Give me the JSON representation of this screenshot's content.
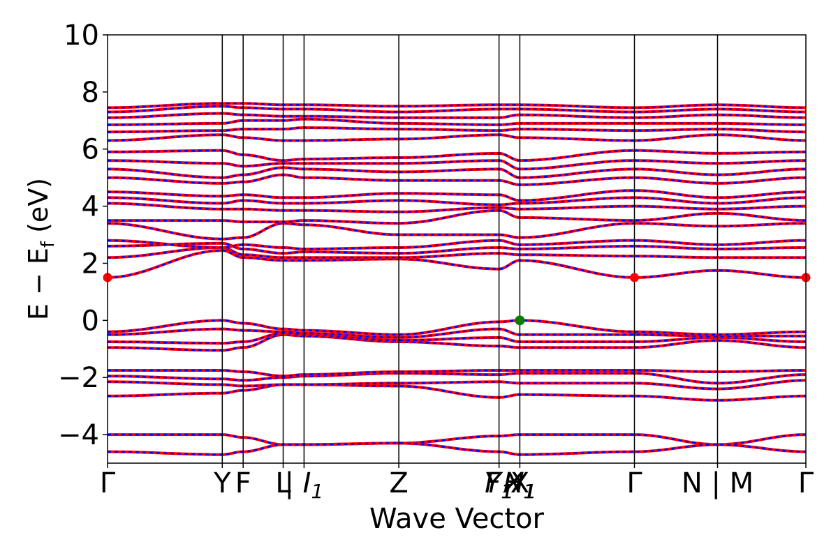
{
  "chart_data": {
    "type": "line",
    "ylabel": "E − E",
    "ylabel_sub": "f",
    "ylabel_unit": " (eV)",
    "xlabel": "Wave Vector",
    "ylim": [
      -5,
      10
    ],
    "yticks": [
      "−4",
      "−2",
      "0",
      "2",
      "4",
      "6",
      "8",
      "10"
    ],
    "ytick_values": [
      -4,
      -2,
      0,
      2,
      4,
      6,
      8,
      10
    ],
    "kpoint_positions": [
      0,
      0.1643,
      0.1942,
      0.2515,
      0.2814,
      0.4171,
      0.5606,
      0.5904,
      0.7545,
      0.8735,
      1.0
    ],
    "kpoint_labels": [
      {
        "text": "Γ",
        "k": 0.0
      },
      {
        "text": "Y",
        "k": 0.1643
      },
      {
        "text": "F",
        "k": 0.1942
      },
      {
        "text": "L",
        "k": 0.2515
      },
      {
        "text": "| I",
        "sub": "1",
        "k": 0.2814
      },
      {
        "text": "Z",
        "k": 0.4171
      },
      {
        "text": "F",
        "sub": "1",
        "k": 0.5606
      },
      {
        "text": "Y",
        "sub": "1",
        "k": 0.5606
      },
      {
        "text": "H",
        "sub": "1",
        "k": 0.5904
      },
      {
        "text": "X",
        "sub": "1",
        "k": 0.5904
      },
      {
        "text": "X",
        "k": 0.5904
      },
      {
        "text": "Γ",
        "k": 0.7545
      },
      {
        "text": "N | M",
        "k": 0.8735
      },
      {
        "text": "Γ",
        "k": 1.0
      }
    ],
    "series_colors": {
      "spin_up": "#ff0000",
      "spin_down": "#0000ff"
    },
    "cbm_color": "#ff0000",
    "vbm_color": "#008000",
    "cbm_points": [
      {
        "k": 0.0,
        "e": 1.5
      },
      {
        "k": 0.7545,
        "e": 1.5
      },
      {
        "k": 1.0,
        "e": 1.5
      }
    ],
    "vbm_points": [
      {
        "k": 0.5904,
        "e": 0.0
      }
    ],
    "bands": [
      {
        "name": "b1",
        "energies": [
          -4.0,
          -4.0,
          -4.1,
          -4.35,
          -4.35,
          -4.3,
          -4.05,
          -4.0,
          -4.0,
          -4.35,
          -4.0
        ]
      },
      {
        "name": "b2",
        "energies": [
          -4.6,
          -4.7,
          -4.6,
          -4.35,
          -4.35,
          -4.3,
          -4.6,
          -4.7,
          -4.6,
          -4.35,
          -4.6
        ]
      },
      {
        "name": "b3",
        "energies": [
          -2.65,
          -2.55,
          -2.45,
          -2.25,
          -2.25,
          -2.3,
          -2.7,
          -2.6,
          -2.65,
          -2.8,
          -2.65
        ]
      },
      {
        "name": "b4",
        "energies": [
          -2.15,
          -2.25,
          -2.3,
          -2.25,
          -2.25,
          -2.2,
          -2.15,
          -2.2,
          -2.2,
          -2.4,
          -2.1
        ]
      },
      {
        "name": "b5",
        "energies": [
          -1.95,
          -2.05,
          -2.1,
          -2.0,
          -1.95,
          -1.85,
          -1.9,
          -1.85,
          -1.85,
          -2.2,
          -1.9
        ]
      },
      {
        "name": "b6",
        "energies": [
          -1.75,
          -1.75,
          -1.8,
          -1.95,
          -1.9,
          -1.8,
          -1.75,
          -1.75,
          -1.75,
          -1.8,
          -1.75
        ]
      },
      {
        "name": "b7",
        "energies": [
          -0.95,
          -1.05,
          -0.95,
          -0.5,
          -0.55,
          -0.75,
          -0.9,
          -0.95,
          -0.95,
          -0.7,
          -0.95
        ]
      },
      {
        "name": "b8",
        "energies": [
          -0.75,
          -0.8,
          -0.75,
          -0.45,
          -0.5,
          -0.7,
          -0.6,
          -0.75,
          -0.75,
          -0.6,
          -0.75
        ]
      },
      {
        "name": "b9",
        "energies": [
          -0.5,
          -0.3,
          -0.35,
          -0.4,
          -0.45,
          -0.6,
          -0.3,
          -0.5,
          -0.5,
          -0.55,
          -0.55
        ]
      },
      {
        "name": "b10",
        "energies": [
          -0.4,
          0.0,
          -0.1,
          -0.3,
          -0.35,
          -0.5,
          -0.05,
          0.0,
          -0.4,
          -0.5,
          -0.4
        ]
      },
      {
        "name": "b11",
        "energies": [
          1.5,
          2.45,
          2.2,
          2.1,
          2.1,
          2.15,
          1.8,
          2.1,
          1.5,
          1.75,
          1.5
        ]
      },
      {
        "name": "b12",
        "energies": [
          2.2,
          2.55,
          2.3,
          2.2,
          2.2,
          2.2,
          2.35,
          2.3,
          2.25,
          2.2,
          2.2
        ]
      },
      {
        "name": "b13",
        "energies": [
          2.6,
          2.7,
          2.5,
          2.35,
          2.4,
          2.35,
          2.55,
          2.5,
          2.6,
          2.5,
          2.55
        ]
      },
      {
        "name": "b14",
        "energies": [
          2.8,
          2.55,
          2.65,
          2.55,
          2.5,
          2.55,
          2.8,
          2.65,
          2.8,
          2.65,
          2.8
        ]
      },
      {
        "name": "b15",
        "energies": [
          3.4,
          2.85,
          2.9,
          3.4,
          3.35,
          3.0,
          3.0,
          2.9,
          3.4,
          3.3,
          3.4
        ]
      },
      {
        "name": "b16",
        "energies": [
          3.5,
          3.5,
          3.45,
          3.45,
          3.5,
          3.4,
          3.85,
          3.6,
          3.5,
          3.75,
          3.5
        ]
      },
      {
        "name": "b17",
        "energies": [
          4.1,
          3.9,
          3.9,
          3.85,
          3.85,
          3.8,
          3.95,
          3.9,
          4.0,
          3.9,
          4.0
        ]
      },
      {
        "name": "b18",
        "energies": [
          4.3,
          4.1,
          4.2,
          4.1,
          4.1,
          4.2,
          4.05,
          4.1,
          4.3,
          4.1,
          4.3
        ]
      },
      {
        "name": "b19",
        "energies": [
          4.5,
          4.35,
          4.4,
          4.3,
          4.3,
          4.45,
          4.4,
          4.2,
          4.55,
          4.3,
          4.5
        ]
      },
      {
        "name": "b20",
        "energies": [
          5.0,
          4.8,
          4.85,
          5.1,
          5.0,
          4.9,
          4.9,
          4.75,
          5.0,
          4.8,
          5.0
        ]
      },
      {
        "name": "b21",
        "energies": [
          5.3,
          5.0,
          5.1,
          5.35,
          5.3,
          5.2,
          5.3,
          5.0,
          5.3,
          5.1,
          5.3
        ]
      },
      {
        "name": "b22",
        "energies": [
          5.6,
          5.5,
          5.4,
          5.5,
          5.5,
          5.5,
          5.6,
          5.3,
          5.6,
          5.5,
          5.6
        ]
      },
      {
        "name": "b23",
        "energies": [
          5.9,
          5.95,
          5.8,
          5.6,
          5.65,
          5.7,
          5.85,
          5.6,
          5.95,
          5.85,
          5.9
        ]
      },
      {
        "name": "b24",
        "energies": [
          6.3,
          6.5,
          6.4,
          6.3,
          6.3,
          6.35,
          6.5,
          6.4,
          6.3,
          6.5,
          6.3
        ]
      },
      {
        "name": "b25",
        "energies": [
          6.6,
          6.65,
          6.7,
          6.7,
          6.75,
          6.7,
          6.65,
          6.7,
          6.65,
          6.7,
          6.6
        ]
      },
      {
        "name": "b26",
        "energies": [
          6.85,
          6.9,
          7.0,
          7.0,
          7.05,
          6.9,
          6.85,
          6.9,
          6.9,
          6.9,
          6.85
        ]
      },
      {
        "name": "b27",
        "energies": [
          7.1,
          7.25,
          7.2,
          7.15,
          7.15,
          7.1,
          7.1,
          7.2,
          7.1,
          7.2,
          7.1
        ]
      },
      {
        "name": "b28",
        "energies": [
          7.3,
          7.5,
          7.45,
          7.4,
          7.4,
          7.3,
          7.4,
          7.4,
          7.3,
          7.4,
          7.3
        ]
      },
      {
        "name": "b29",
        "energies": [
          7.45,
          7.6,
          7.6,
          7.55,
          7.55,
          7.5,
          7.55,
          7.55,
          7.45,
          7.55,
          7.45
        ]
      }
    ]
  }
}
